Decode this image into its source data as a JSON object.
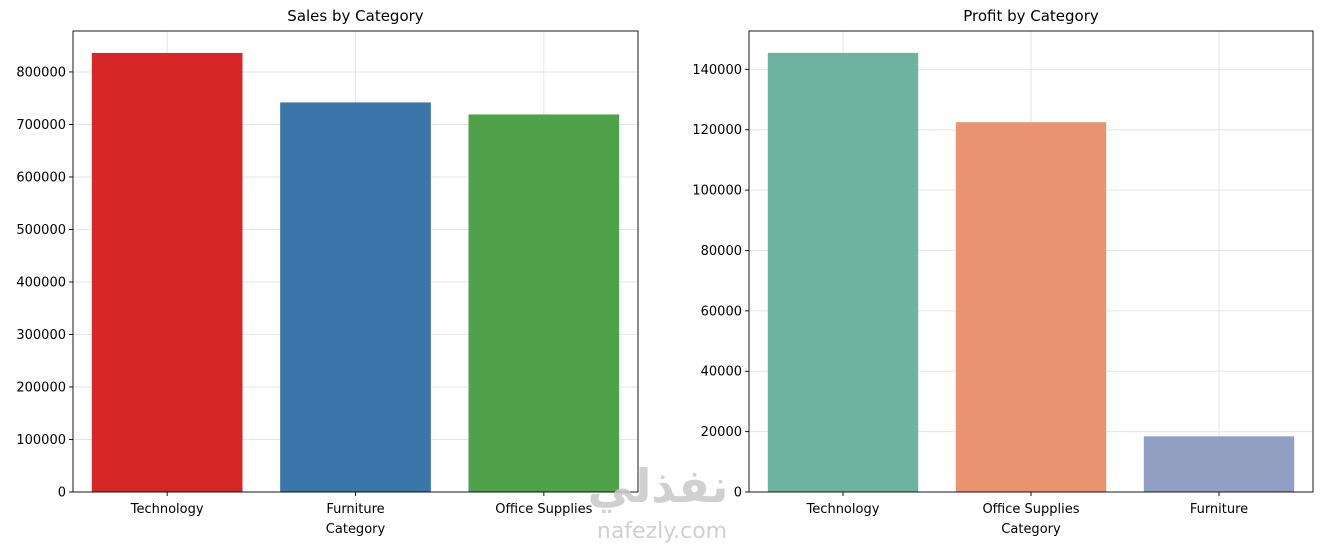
{
  "chart_data": [
    {
      "type": "bar",
      "title": "Sales by Category",
      "xlabel": "Category",
      "ylabel": "",
      "categories": [
        "Technology",
        "Furniture",
        "Office Supplies"
      ],
      "values": [
        836154,
        741999,
        719047
      ],
      "colors": [
        "#d62728",
        "#3a76aa",
        "#4fa14a"
      ],
      "ylim": [
        0,
        878000
      ],
      "yticks": [
        0,
        100000,
        200000,
        300000,
        400000,
        500000,
        600000,
        700000,
        800000
      ],
      "yticklabels": [
        "0",
        "100000",
        "200000",
        "300000",
        "400000",
        "500000",
        "600000",
        "700000",
        "800000"
      ],
      "grid": true
    },
    {
      "type": "bar",
      "title": "Profit by Category",
      "xlabel": "Category",
      "ylabel": "",
      "categories": [
        "Technology",
        "Office Supplies",
        "Furniture"
      ],
      "values": [
        145455,
        122491,
        18451
      ],
      "colors": [
        "#6db3a0",
        "#ea9370",
        "#929fc3"
      ],
      "ylim": [
        0,
        152700
      ],
      "yticks": [
        0,
        20000,
        40000,
        60000,
        80000,
        100000,
        120000,
        140000
      ],
      "yticklabels": [
        "0",
        "20000",
        "40000",
        "60000",
        "80000",
        "100000",
        "120000",
        "140000"
      ],
      "grid": true
    }
  ],
  "watermark": {
    "arabic": "نفذلي",
    "latin": "nafezly.com"
  }
}
